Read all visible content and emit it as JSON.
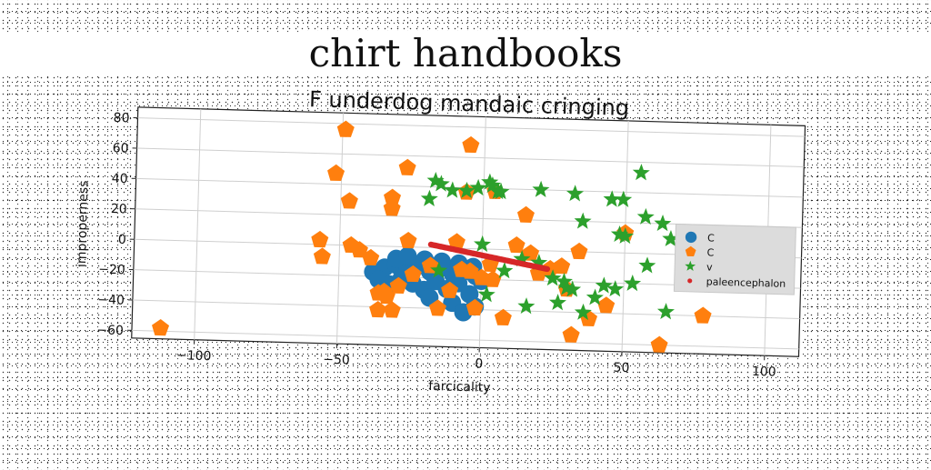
{
  "page": {
    "title": "chirt handbooks"
  },
  "chart_data": {
    "type": "scatter",
    "title": "F underdog mandaic cringing",
    "xlabel": "farcicality",
    "ylabel": "improperness",
    "xlim": [
      -122,
      112
    ],
    "ylim": [
      -65,
      87
    ],
    "xticks": [
      -100,
      -50,
      0,
      50,
      100
    ],
    "yticks": [
      -60,
      -40,
      -20,
      0,
      20,
      40,
      60,
      80
    ],
    "xtick_labels": [
      "−100",
      "−50",
      "0",
      "50",
      "100"
    ],
    "ytick_labels": [
      "−60",
      "−40",
      "−20",
      "0",
      "20",
      "40",
      "60",
      "80"
    ],
    "grid": true,
    "legend_position": "right",
    "series": [
      {
        "name": "C",
        "marker": "circle",
        "color": "#1f77b4",
        "points": [
          [
            -38,
            -17
          ],
          [
            -34,
            -14
          ],
          [
            -30,
            -12
          ],
          [
            -26,
            -15
          ],
          [
            -22,
            -12
          ],
          [
            -18,
            -16
          ],
          [
            -14,
            -13
          ],
          [
            -10,
            -17
          ],
          [
            -6,
            -15
          ],
          [
            -2,
            -18
          ],
          [
            -36,
            -22
          ],
          [
            -32,
            -25
          ],
          [
            -28,
            -21
          ],
          [
            -24,
            -24
          ],
          [
            -20,
            -28
          ],
          [
            -16,
            -22
          ],
          [
            -12,
            -27
          ],
          [
            -8,
            -23
          ],
          [
            -4,
            -30
          ],
          [
            0,
            -21
          ],
          [
            -30,
            -8
          ],
          [
            -26,
            -6
          ],
          [
            -20,
            -8
          ],
          [
            -14,
            -9
          ],
          [
            -8,
            -10
          ],
          [
            -3,
            -12
          ],
          [
            -10,
            -36
          ],
          [
            -6,
            -42
          ],
          [
            -2,
            -38
          ],
          [
            -18,
            -33
          ]
        ]
      },
      {
        "name": "C",
        "marker": "pentagon",
        "color": "#ff7f0e",
        "points": [
          [
            -112,
            -58
          ],
          [
            -57,
            3
          ],
          [
            -56,
            -8
          ],
          [
            -52,
            47
          ],
          [
            -49,
            76
          ],
          [
            -47,
            29
          ],
          [
            -46,
            0
          ],
          [
            -43,
            -3
          ],
          [
            -39,
            -8
          ],
          [
            -36,
            -31
          ],
          [
            -36,
            -42
          ],
          [
            -34,
            -30
          ],
          [
            -33,
            -33
          ],
          [
            -32,
            32
          ],
          [
            -32,
            25
          ],
          [
            -31,
            -42
          ],
          [
            -29,
            -26
          ],
          [
            -27,
            52
          ],
          [
            -26,
            4
          ],
          [
            -24,
            -18
          ],
          [
            -18,
            -12
          ],
          [
            -15,
            -40
          ],
          [
            -11,
            -28
          ],
          [
            -9,
            4
          ],
          [
            -7,
            -14
          ],
          [
            -6,
            37
          ],
          [
            -5,
            68
          ],
          [
            -4,
            -15
          ],
          [
            -2,
            -39
          ],
          [
            0,
            -19
          ],
          [
            3,
            -10
          ],
          [
            4,
            -20
          ],
          [
            4,
            38
          ],
          [
            8,
            -45
          ],
          [
            12,
            3
          ],
          [
            15,
            23
          ],
          [
            17,
            -2
          ],
          [
            20,
            -15
          ],
          [
            24,
            -12
          ],
          [
            28,
            -10
          ],
          [
            30,
            -25
          ],
          [
            32,
            -55
          ],
          [
            34,
            0
          ],
          [
            38,
            -44
          ],
          [
            44,
            -35
          ],
          [
            50,
            13
          ],
          [
            63,
            -60
          ],
          [
            78,
            -40
          ],
          [
            103,
            11
          ]
        ]
      },
      {
        "name": "v",
        "marker": "star",
        "color": "#2ca02c",
        "points": [
          [
            -19,
            32
          ],
          [
            -17,
            44
          ],
          [
            -15,
            42
          ],
          [
            -15,
            -15
          ],
          [
            -11,
            38
          ],
          [
            -6,
            38
          ],
          [
            -2,
            40
          ],
          [
            0,
            3
          ],
          [
            2,
            -30
          ],
          [
            2,
            44
          ],
          [
            3,
            42
          ],
          [
            5,
            38
          ],
          [
            6,
            38
          ],
          [
            8,
            -14
          ],
          [
            14,
            -6
          ],
          [
            16,
            -37
          ],
          [
            20,
            -8
          ],
          [
            20,
            40
          ],
          [
            25,
            -18
          ],
          [
            27,
            -34
          ],
          [
            29,
            -20
          ],
          [
            30,
            -24
          ],
          [
            32,
            -25
          ],
          [
            32,
            38
          ],
          [
            35,
            20
          ],
          [
            36,
            -40
          ],
          [
            40,
            -30
          ],
          [
            43,
            -22
          ],
          [
            45,
            35
          ],
          [
            47,
            -24
          ],
          [
            48,
            12
          ],
          [
            49,
            35
          ],
          [
            50,
            11
          ],
          [
            53,
            -20
          ],
          [
            55,
            53
          ],
          [
            57,
            24
          ],
          [
            58,
            -8
          ],
          [
            63,
            20
          ],
          [
            65,
            -38
          ],
          [
            66,
            10
          ]
        ]
      },
      {
        "name": "paleencephalon",
        "marker": "dot",
        "color": "#d62728",
        "line": {
          "x_start": -18,
          "x_end": 23,
          "y_start": 2,
          "y_end": -12,
          "n": 80
        }
      }
    ]
  }
}
